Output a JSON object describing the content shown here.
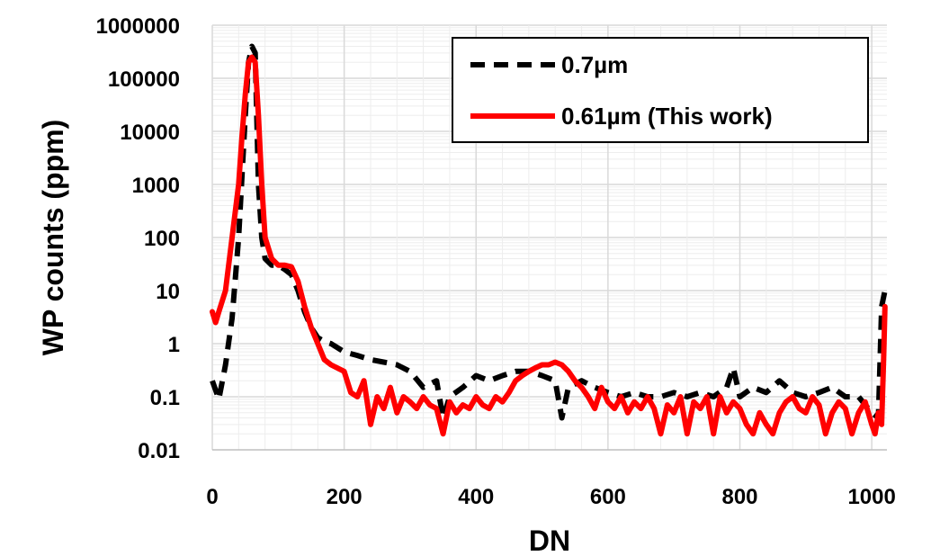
{
  "chart_data": {
    "type": "line",
    "xlabel": "DN",
    "ylabel": "WP counts (ppm)",
    "xlim": [
      0,
      1023
    ],
    "ylim": [
      0.01,
      1000000
    ],
    "yscale": "log",
    "x_ticks": [
      0,
      200,
      400,
      600,
      800,
      1000
    ],
    "x_tick_labels": [
      "0",
      "200",
      "400",
      "600",
      "800",
      "1000"
    ],
    "y_ticks": [
      0.01,
      0.1,
      1,
      10,
      100,
      1000,
      10000,
      100000,
      1000000
    ],
    "y_tick_labels": [
      "0.01",
      "0.1",
      "1",
      "10",
      "100",
      "1000",
      "10000",
      "100000",
      "1000000"
    ],
    "grid": true,
    "legend_position": "top-right",
    "series": [
      {
        "name": "0.7µm",
        "color": "#000000",
        "style": "dashed",
        "x": [
          0,
          10,
          20,
          30,
          40,
          50,
          55,
          60,
          65,
          70,
          75,
          80,
          90,
          100,
          110,
          120,
          130,
          140,
          150,
          160,
          170,
          180,
          200,
          220,
          240,
          260,
          280,
          300,
          320,
          340,
          350,
          360,
          380,
          400,
          420,
          440,
          460,
          480,
          500,
          520,
          530,
          540,
          560,
          580,
          600,
          620,
          640,
          660,
          680,
          700,
          720,
          740,
          760,
          780,
          790,
          800,
          820,
          840,
          860,
          880,
          900,
          920,
          940,
          960,
          980,
          1000,
          1010,
          1015,
          1020
        ],
        "y": [
          0.2,
          0.09,
          0.4,
          3,
          100,
          20000,
          200000,
          400000,
          300000,
          1000,
          100,
          40,
          30,
          30,
          25,
          20,
          10,
          4,
          2,
          1.3,
          1.1,
          1,
          0.7,
          0.6,
          0.5,
          0.45,
          0.4,
          0.3,
          0.15,
          0.2,
          0.04,
          0.1,
          0.15,
          0.25,
          0.2,
          0.25,
          0.3,
          0.3,
          0.25,
          0.2,
          0.04,
          0.15,
          0.2,
          0.15,
          0.12,
          0.1,
          0.12,
          0.1,
          0.1,
          0.12,
          0.1,
          0.12,
          0.1,
          0.15,
          0.35,
          0.1,
          0.15,
          0.12,
          0.2,
          0.12,
          0.1,
          0.12,
          0.15,
          0.1,
          0.1,
          0.05,
          0.04,
          5,
          10
        ]
      },
      {
        "name": "0.61µm (This work)",
        "color": "#ff0000",
        "style": "solid",
        "x": [
          0,
          5,
          10,
          20,
          30,
          40,
          45,
          50,
          55,
          60,
          65,
          70,
          75,
          80,
          90,
          100,
          110,
          120,
          130,
          140,
          150,
          160,
          170,
          180,
          200,
          210,
          220,
          230,
          240,
          250,
          260,
          270,
          280,
          290,
          300,
          310,
          320,
          330,
          340,
          350,
          360,
          370,
          380,
          390,
          400,
          410,
          420,
          430,
          440,
          450,
          460,
          470,
          480,
          490,
          500,
          510,
          520,
          530,
          540,
          550,
          560,
          570,
          580,
          590,
          600,
          610,
          620,
          630,
          640,
          650,
          660,
          670,
          680,
          690,
          700,
          710,
          720,
          730,
          740,
          750,
          760,
          770,
          780,
          790,
          800,
          810,
          820,
          830,
          840,
          850,
          860,
          870,
          880,
          890,
          900,
          910,
          920,
          930,
          940,
          950,
          960,
          970,
          980,
          990,
          1000,
          1005,
          1010,
          1015,
          1018,
          1020
        ],
        "y": [
          4,
          2.5,
          4,
          10,
          100,
          1000,
          8000,
          50000,
          200000,
          250000,
          200000,
          20000,
          1000,
          100,
          40,
          30,
          30,
          28,
          15,
          5,
          2,
          1,
          0.5,
          0.4,
          0.3,
          0.12,
          0.1,
          0.2,
          0.03,
          0.1,
          0.06,
          0.15,
          0.05,
          0.1,
          0.08,
          0.06,
          0.1,
          0.07,
          0.06,
          0.02,
          0.08,
          0.05,
          0.07,
          0.06,
          0.1,
          0.07,
          0.06,
          0.1,
          0.08,
          0.12,
          0.2,
          0.25,
          0.3,
          0.35,
          0.4,
          0.4,
          0.45,
          0.4,
          0.3,
          0.2,
          0.15,
          0.1,
          0.06,
          0.15,
          0.08,
          0.06,
          0.1,
          0.05,
          0.08,
          0.06,
          0.1,
          0.06,
          0.02,
          0.07,
          0.05,
          0.1,
          0.02,
          0.08,
          0.06,
          0.1,
          0.02,
          0.1,
          0.05,
          0.08,
          0.06,
          0.03,
          0.02,
          0.05,
          0.03,
          0.02,
          0.05,
          0.08,
          0.1,
          0.06,
          0.05,
          0.1,
          0.07,
          0.02,
          0.05,
          0.08,
          0.06,
          0.02,
          0.05,
          0.08,
          0.03,
          0.02,
          0.05,
          0.03,
          0.5,
          5
        ]
      }
    ]
  }
}
